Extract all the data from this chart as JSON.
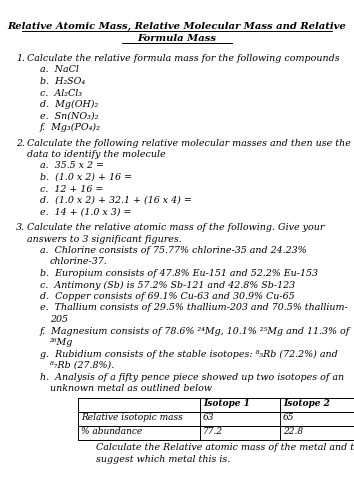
{
  "title_line1": "Relative Atomic Mass, Relative Molecular Mass and Relative",
  "title_line2": "Formula Mass",
  "bg_color": "#ffffff",
  "font_family": "serif",
  "sections": [
    {
      "number": "1.",
      "text": "Calculate the relative formula mass for the following compounds",
      "items": [
        "a.  NaCl",
        "b.  H₂SO₄",
        "c.  Al₂Cl₃",
        "d.  Mg(OH)₂",
        "e.  Sn(NO₃)₂",
        "f.  Mg₃(PO₄)₂"
      ]
    },
    {
      "number": "2.",
      "text": "Calculate the following relative molecular masses and then use the\ndata to identify the molecule",
      "items": [
        "a.  35.5 x 2 =",
        "b.  (1.0 x 2) + 16 =",
        "c.  12 + 16 =",
        "d.  (1.0 x 2) + 32.1 + (16 x 4) =",
        "e.  14 + (1.0 x 3) ="
      ]
    },
    {
      "number": "3.",
      "text": "Calculate the relative atomic mass of the following. Give your\nanswers to 3 significant figures.",
      "items": [
        [
          "a.  Chlorine consists of 75.77% chlorine-35 and 24.23%",
          "chlorine-37."
        ],
        [
          "b.  Europium consists of 47.8% Eu-151 and 52.2% Eu-153"
        ],
        [
          "c.  Antimony (Sb) is 57.2% Sb-121 and 42.8% Sb-123"
        ],
        [
          "d.  Copper consists of 69.1% Cu-63 and 30.9% Cu-65"
        ],
        [
          "e.  Thallium consists of 29.5% thallium-203 and 70.5% thallium-",
          "205"
        ],
        [
          "f.  Magnesium consists of 78.6% ²⁴Mg, 10.1% ²⁵Mg and 11.3% of",
          "²⁶Mg"
        ],
        [
          "g.  Rubidium consists of the stable isotopes: ⁸₅Rb (72.2%) and",
          "⁸₇Rb (27.8%)."
        ],
        [
          "h.  Analysis of a fifty pence piece showed up two isotopes of an",
          "unknown metal as outlined below"
        ]
      ]
    }
  ],
  "table": {
    "headers": [
      "",
      "Isotope 1",
      "Isotope 2"
    ],
    "rows": [
      [
        "Relative isotopic mass",
        "63",
        "65"
      ],
      [
        "% abundance",
        "77.2",
        "22.8"
      ]
    ]
  },
  "table_caption_line1": "Calculate the Relative atomic mass of the metal and then",
  "table_caption_line2": "suggest which metal this is."
}
